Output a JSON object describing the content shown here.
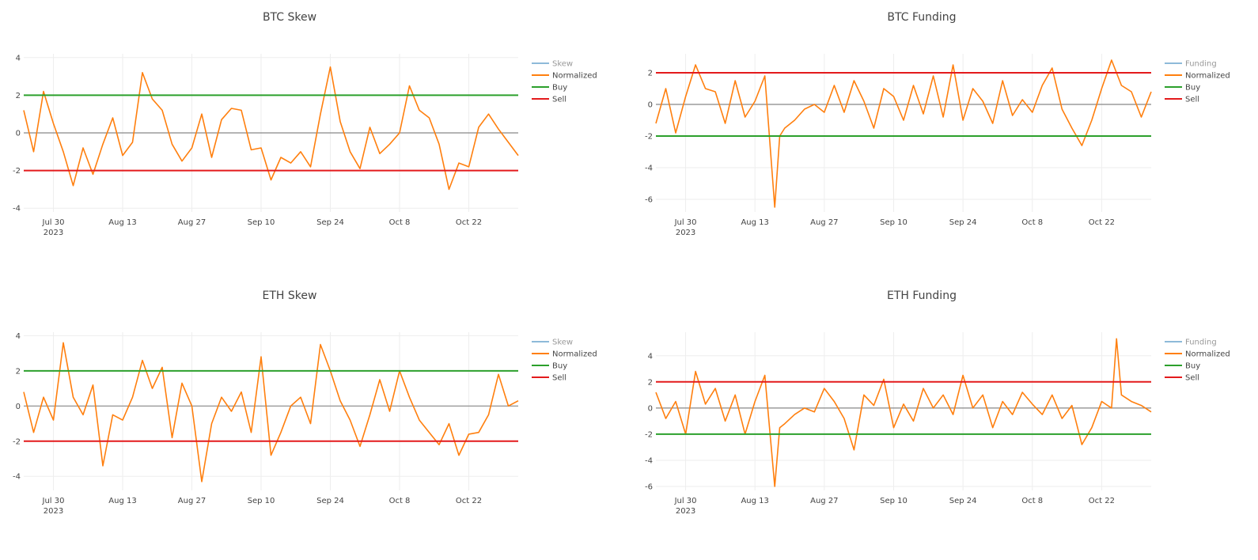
{
  "colors": {
    "normalized": "#ff7f0e",
    "raw": "#1f77b4",
    "buy": "#2ca02c",
    "sell": "#e31a1c",
    "zero": "#888888",
    "grid": "#eeeeee",
    "text": "#444444",
    "legend_faded": "#999999"
  },
  "x_ticks": [
    "Jul 30",
    "Aug 13",
    "Aug 27",
    "Sep 10",
    "Sep 24",
    "Oct 8",
    "Oct 22"
  ],
  "x_year_label": "2023",
  "chart_data": [
    {
      "type": "line",
      "title": "BTC Skew",
      "x_range": [
        "2023-07-24",
        "2023-11-01"
      ],
      "ylim": [
        -4.2,
        4.2
      ],
      "y_ticks": [
        -4,
        -2,
        0,
        2,
        4
      ],
      "buy_level": 2,
      "sell_level": -2,
      "legend": [
        "Skew",
        "Normalized",
        "Buy",
        "Sell"
      ],
      "series": [
        {
          "name": "Normalized",
          "x": [
            "2023-07-24",
            "2023-07-26",
            "2023-07-28",
            "2023-07-30",
            "2023-08-01",
            "2023-08-03",
            "2023-08-05",
            "2023-08-07",
            "2023-08-09",
            "2023-08-11",
            "2023-08-13",
            "2023-08-15",
            "2023-08-17",
            "2023-08-19",
            "2023-08-21",
            "2023-08-23",
            "2023-08-25",
            "2023-08-27",
            "2023-08-29",
            "2023-08-31",
            "2023-09-02",
            "2023-09-04",
            "2023-09-06",
            "2023-09-08",
            "2023-09-10",
            "2023-09-12",
            "2023-09-14",
            "2023-09-16",
            "2023-09-18",
            "2023-09-20",
            "2023-09-22",
            "2023-09-24",
            "2023-09-26",
            "2023-09-28",
            "2023-09-30",
            "2023-10-02",
            "2023-10-04",
            "2023-10-06",
            "2023-10-08",
            "2023-10-10",
            "2023-10-12",
            "2023-10-14",
            "2023-10-16",
            "2023-10-18",
            "2023-10-20",
            "2023-10-22",
            "2023-10-24",
            "2023-10-26",
            "2023-10-28",
            "2023-10-30",
            "2023-11-01"
          ],
          "y": [
            1.2,
            -1.0,
            2.2,
            0.5,
            -1.0,
            -2.8,
            -0.8,
            -2.2,
            -0.6,
            0.8,
            -1.2,
            -0.5,
            3.2,
            1.8,
            1.2,
            -0.6,
            -1.5,
            -0.8,
            1.0,
            -1.3,
            0.7,
            1.3,
            1.2,
            -0.9,
            -0.8,
            -2.5,
            -1.3,
            -1.6,
            -1.0,
            -1.8,
            1.0,
            3.5,
            0.6,
            -1.0,
            -1.9,
            0.3,
            -1.1,
            -0.6,
            0.0,
            2.5,
            1.2,
            0.8,
            -0.6,
            -3.0,
            -1.6,
            -1.8,
            0.3,
            1.0,
            0.2,
            -0.5,
            -1.2
          ]
        }
      ]
    },
    {
      "type": "line",
      "title": "BTC Funding",
      "x_range": [
        "2023-07-24",
        "2023-11-01"
      ],
      "ylim": [
        -6.8,
        3.2
      ],
      "y_ticks": [
        -6,
        -4,
        -2,
        0,
        2
      ],
      "buy_level": -2,
      "sell_level": 2,
      "legend": [
        "Funding",
        "Normalized",
        "Buy",
        "Sell"
      ],
      "series": [
        {
          "name": "Normalized",
          "x": [
            "2023-07-24",
            "2023-07-26",
            "2023-07-28",
            "2023-07-30",
            "2023-08-01",
            "2023-08-03",
            "2023-08-05",
            "2023-08-07",
            "2023-08-09",
            "2023-08-11",
            "2023-08-13",
            "2023-08-15",
            "2023-08-17",
            "2023-08-18",
            "2023-08-19",
            "2023-08-21",
            "2023-08-23",
            "2023-08-25",
            "2023-08-27",
            "2023-08-29",
            "2023-08-31",
            "2023-09-02",
            "2023-09-04",
            "2023-09-06",
            "2023-09-08",
            "2023-09-10",
            "2023-09-12",
            "2023-09-14",
            "2023-09-16",
            "2023-09-18",
            "2023-09-20",
            "2023-09-22",
            "2023-09-24",
            "2023-09-26",
            "2023-09-28",
            "2023-09-30",
            "2023-10-02",
            "2023-10-04",
            "2023-10-06",
            "2023-10-08",
            "2023-10-10",
            "2023-10-12",
            "2023-10-14",
            "2023-10-16",
            "2023-10-18",
            "2023-10-20",
            "2023-10-22",
            "2023-10-24",
            "2023-10-26",
            "2023-10-28",
            "2023-10-30",
            "2023-11-01"
          ],
          "y": [
            -1.2,
            1.0,
            -1.8,
            0.5,
            2.5,
            1.0,
            0.8,
            -1.2,
            1.5,
            -0.8,
            0.2,
            1.8,
            -6.5,
            -2.0,
            -1.5,
            -1.0,
            -0.3,
            0.0,
            -0.5,
            1.2,
            -0.5,
            1.5,
            0.2,
            -1.5,
            1.0,
            0.5,
            -1.0,
            1.2,
            -0.6,
            1.8,
            -0.8,
            2.5,
            -1.0,
            1.0,
            0.2,
            -1.2,
            1.5,
            -0.7,
            0.3,
            -0.5,
            1.2,
            2.3,
            -0.3,
            -1.5,
            -2.6,
            -1.0,
            1.0,
            2.8,
            1.2,
            0.8,
            -0.8,
            0.8
          ]
        }
      ]
    },
    {
      "type": "line",
      "title": "ETH Skew",
      "x_range": [
        "2023-07-24",
        "2023-11-01"
      ],
      "ylim": [
        -4.8,
        4.2
      ],
      "y_ticks": [
        -4,
        -2,
        0,
        2,
        4
      ],
      "buy_level": 2,
      "sell_level": -2,
      "legend": [
        "Skew",
        "Normalized",
        "Buy",
        "Sell"
      ],
      "series": [
        {
          "name": "Normalized",
          "x": [
            "2023-07-24",
            "2023-07-26",
            "2023-07-28",
            "2023-07-30",
            "2023-08-01",
            "2023-08-03",
            "2023-08-05",
            "2023-08-07",
            "2023-08-09",
            "2023-08-11",
            "2023-08-13",
            "2023-08-15",
            "2023-08-17",
            "2023-08-19",
            "2023-08-21",
            "2023-08-23",
            "2023-08-25",
            "2023-08-27",
            "2023-08-29",
            "2023-08-31",
            "2023-09-02",
            "2023-09-04",
            "2023-09-06",
            "2023-09-08",
            "2023-09-10",
            "2023-09-12",
            "2023-09-14",
            "2023-09-16",
            "2023-09-18",
            "2023-09-20",
            "2023-09-22",
            "2023-09-24",
            "2023-09-26",
            "2023-09-28",
            "2023-09-30",
            "2023-10-02",
            "2023-10-04",
            "2023-10-06",
            "2023-10-08",
            "2023-10-10",
            "2023-10-12",
            "2023-10-14",
            "2023-10-16",
            "2023-10-18",
            "2023-10-20",
            "2023-10-22",
            "2023-10-24",
            "2023-10-26",
            "2023-10-28",
            "2023-10-30",
            "2023-11-01"
          ],
          "y": [
            0.8,
            -1.5,
            0.5,
            -0.8,
            3.6,
            0.5,
            -0.5,
            1.2,
            -3.4,
            -0.5,
            -0.8,
            0.5,
            2.6,
            1.0,
            2.2,
            -1.8,
            1.3,
            0.0,
            -4.3,
            -1.0,
            0.5,
            -0.3,
            0.8,
            -1.5,
            2.8,
            -2.8,
            -1.5,
            0.0,
            0.5,
            -1.0,
            3.5,
            2.0,
            0.3,
            -0.8,
            -2.3,
            -0.5,
            1.5,
            -0.3,
            2.0,
            0.5,
            -0.8,
            -1.5,
            -2.2,
            -1.0,
            -2.8,
            -1.6,
            -1.5,
            -0.5,
            1.8,
            0.0,
            0.3
          ]
        }
      ]
    },
    {
      "type": "line",
      "title": "ETH Funding",
      "x_range": [
        "2023-07-24",
        "2023-11-01"
      ],
      "ylim": [
        -6.3,
        5.8
      ],
      "y_ticks": [
        -6,
        -4,
        -2,
        0,
        2,
        4
      ],
      "buy_level": -2,
      "sell_level": 2,
      "legend": [
        "Funding",
        "Normalized",
        "Buy",
        "Sell"
      ],
      "series": [
        {
          "name": "Normalized",
          "x": [
            "2023-07-24",
            "2023-07-26",
            "2023-07-28",
            "2023-07-30",
            "2023-08-01",
            "2023-08-03",
            "2023-08-05",
            "2023-08-07",
            "2023-08-09",
            "2023-08-11",
            "2023-08-13",
            "2023-08-15",
            "2023-08-17",
            "2023-08-18",
            "2023-08-19",
            "2023-08-21",
            "2023-08-23",
            "2023-08-25",
            "2023-08-27",
            "2023-08-29",
            "2023-08-31",
            "2023-09-02",
            "2023-09-04",
            "2023-09-06",
            "2023-09-08",
            "2023-09-10",
            "2023-09-12",
            "2023-09-14",
            "2023-09-16",
            "2023-09-18",
            "2023-09-20",
            "2023-09-22",
            "2023-09-24",
            "2023-09-26",
            "2023-09-28",
            "2023-09-30",
            "2023-10-02",
            "2023-10-04",
            "2023-10-06",
            "2023-10-08",
            "2023-10-10",
            "2023-10-12",
            "2023-10-14",
            "2023-10-16",
            "2023-10-18",
            "2023-10-20",
            "2023-10-22",
            "2023-10-24",
            "2023-10-25",
            "2023-10-26",
            "2023-10-28",
            "2023-10-30",
            "2023-11-01"
          ],
          "y": [
            1.2,
            -0.8,
            0.5,
            -2.0,
            2.8,
            0.3,
            1.5,
            -1.0,
            1.0,
            -2.0,
            0.5,
            2.5,
            -6.0,
            -1.5,
            -1.2,
            -0.5,
            0.0,
            -0.3,
            1.5,
            0.5,
            -0.8,
            -3.2,
            1.0,
            0.2,
            2.2,
            -1.5,
            0.3,
            -1.0,
            1.5,
            0.0,
            1.0,
            -0.5,
            2.5,
            0.0,
            1.0,
            -1.5,
            0.5,
            -0.5,
            1.2,
            0.3,
            -0.5,
            1.0,
            -0.8,
            0.2,
            -2.8,
            -1.5,
            0.5,
            0.0,
            5.3,
            1.0,
            0.5,
            0.2,
            -0.3
          ]
        }
      ]
    }
  ]
}
